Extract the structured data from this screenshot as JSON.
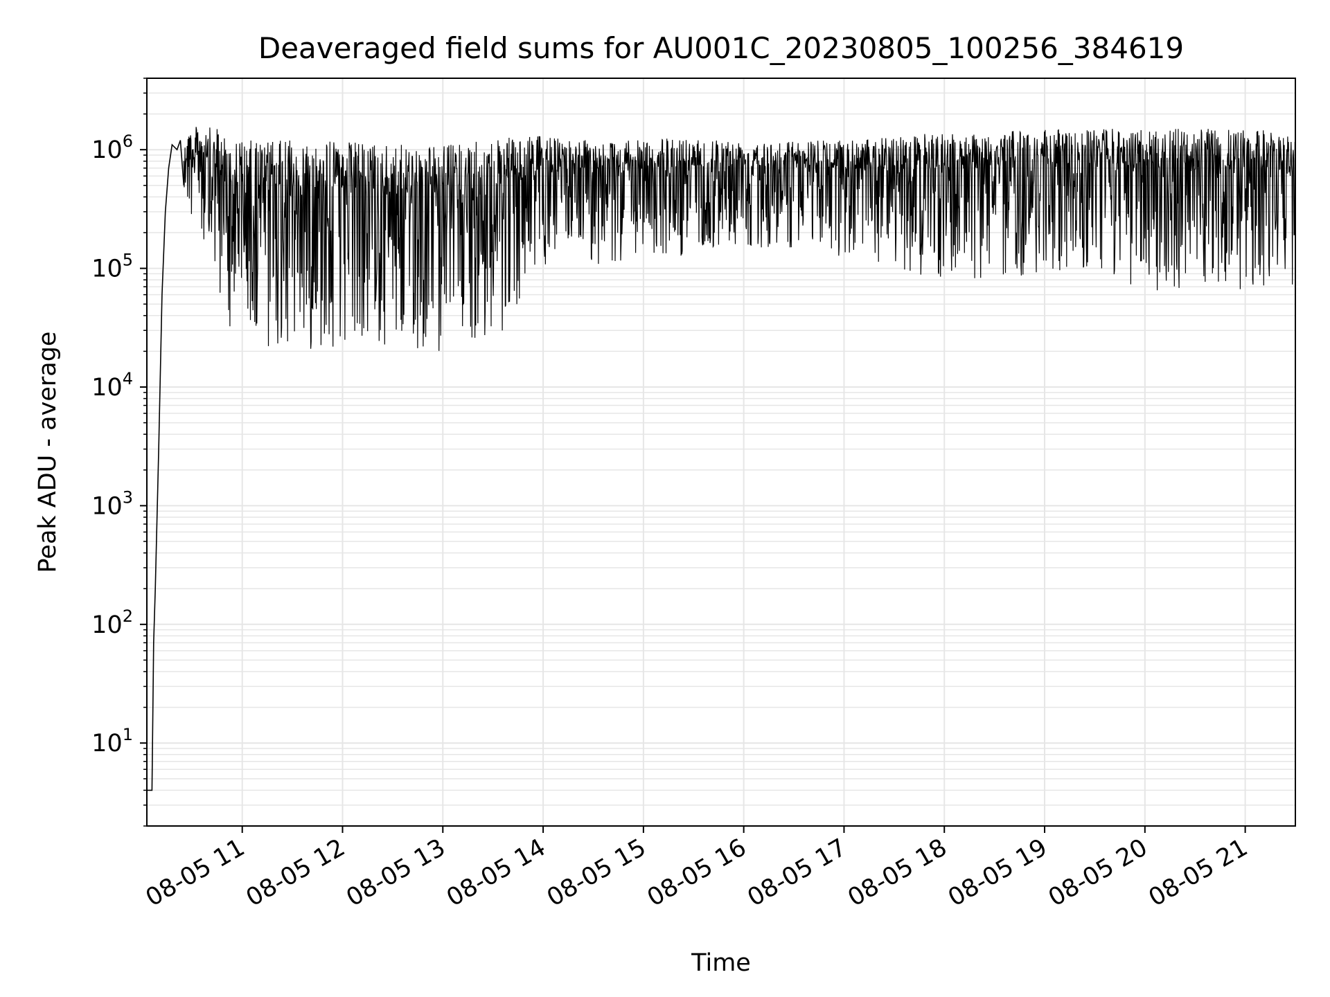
{
  "chart_data": {
    "type": "line",
    "title": "Deaveraged field sums for AU001C_20230805_100256_384619",
    "xlabel": "Time",
    "ylabel": "Peak ADU - average",
    "y_scale": "log",
    "ylim": [
      2,
      4000000
    ],
    "xlim": [
      "2023-08-05 10:02:56",
      "2023-08-05 21:30:00"
    ],
    "grid": true,
    "line_color": "#000000",
    "grid_color": "#e6e6e6",
    "x_ticks": [
      {
        "label": "08-05 11",
        "time": "2023-08-05 11:00"
      },
      {
        "label": "08-05 12",
        "time": "2023-08-05 12:00"
      },
      {
        "label": "08-05 13",
        "time": "2023-08-05 13:00"
      },
      {
        "label": "08-05 14",
        "time": "2023-08-05 14:00"
      },
      {
        "label": "08-05 15",
        "time": "2023-08-05 15:00"
      },
      {
        "label": "08-05 16",
        "time": "2023-08-05 16:00"
      },
      {
        "label": "08-05 17",
        "time": "2023-08-05 17:00"
      },
      {
        "label": "08-05 18",
        "time": "2023-08-05 18:00"
      },
      {
        "label": "08-05 19",
        "time": "2023-08-05 19:00"
      },
      {
        "label": "08-05 20",
        "time": "2023-08-05 20:00"
      },
      {
        "label": "08-05 21",
        "time": "2023-08-05 21:00"
      }
    ],
    "y_ticks": [
      {
        "mantissa": "10",
        "exp": "1",
        "value": 10
      },
      {
        "mantissa": "10",
        "exp": "2",
        "value": 100
      },
      {
        "mantissa": "10",
        "exp": "3",
        "value": 1000
      },
      {
        "mantissa": "10",
        "exp": "4",
        "value": 10000
      },
      {
        "mantissa": "10",
        "exp": "5",
        "value": 100000
      },
      {
        "mantissa": "10",
        "exp": "6",
        "value": 1000000
      }
    ],
    "series": [
      {
        "points": [
          [
            "2023-08-05 10:02:56",
            4
          ],
          [
            "2023-08-05 10:06",
            4
          ],
          [
            "2023-08-05 10:07",
            70
          ],
          [
            "2023-08-05 10:08",
            200
          ],
          [
            "2023-08-05 10:10",
            3000
          ],
          [
            "2023-08-05 10:12",
            60000
          ],
          [
            "2023-08-05 10:14",
            300000
          ],
          [
            "2023-08-05 10:16",
            700000
          ],
          [
            "2023-08-05 10:18",
            1100000
          ],
          [
            "2023-08-05 10:21",
            1000000
          ],
          [
            "2023-08-05 10:23",
            1200000
          ],
          [
            "2023-08-05 10:25",
            500000
          ]
        ]
      }
    ],
    "band_envelope": [
      {
        "time": "2023-08-05 10:25",
        "upper": 1500000,
        "lower": 300000
      },
      {
        "time": "2023-08-05 10:35",
        "upper": 1600000,
        "lower": 150000
      },
      {
        "time": "2023-08-05 10:45",
        "upper": 1500000,
        "lower": 50000
      },
      {
        "time": "2023-08-05 11:00",
        "upper": 1200000,
        "lower": 20000
      },
      {
        "time": "2023-08-05 11:30",
        "upper": 1200000,
        "lower": 20000
      },
      {
        "time": "2023-08-05 12:00",
        "upper": 1200000,
        "lower": 22000
      },
      {
        "time": "2023-08-05 12:30",
        "upper": 1100000,
        "lower": 20000
      },
      {
        "time": "2023-08-05 13:00",
        "upper": 1100000,
        "lower": 20000
      },
      {
        "time": "2023-08-05 13:30",
        "upper": 1200000,
        "lower": 22000
      },
      {
        "time": "2023-08-05 13:45",
        "upper": 1300000,
        "lower": 50000
      },
      {
        "time": "2023-08-05 14:00",
        "upper": 1300000,
        "lower": 100000
      },
      {
        "time": "2023-08-05 14:30",
        "upper": 1200000,
        "lower": 100000
      },
      {
        "time": "2023-08-05 15:00",
        "upper": 1200000,
        "lower": 120000
      },
      {
        "time": "2023-08-05 15:30",
        "upper": 1300000,
        "lower": 130000
      },
      {
        "time": "2023-08-05 16:00",
        "upper": 1200000,
        "lower": 150000
      },
      {
        "time": "2023-08-05 16:30",
        "upper": 1200000,
        "lower": 150000
      },
      {
        "time": "2023-08-05 17:00",
        "upper": 1200000,
        "lower": 120000
      },
      {
        "time": "2023-08-05 17:30",
        "upper": 1300000,
        "lower": 90000
      },
      {
        "time": "2023-08-05 18:00",
        "upper": 1400000,
        "lower": 80000
      },
      {
        "time": "2023-08-05 18:30",
        "upper": 1400000,
        "lower": 80000
      },
      {
        "time": "2023-08-05 19:00",
        "upper": 1500000,
        "lower": 90000
      },
      {
        "time": "2023-08-05 19:30",
        "upper": 1500000,
        "lower": 100000
      },
      {
        "time": "2023-08-05 19:45",
        "upper": 1500000,
        "lower": 70000
      },
      {
        "time": "2023-08-05 20:00",
        "upper": 1500000,
        "lower": 65000
      },
      {
        "time": "2023-08-05 20:30",
        "upper": 1500000,
        "lower": 65000
      },
      {
        "time": "2023-08-05 21:00",
        "upper": 1500000,
        "lower": 65000
      },
      {
        "time": "2023-08-05 21:30",
        "upper": 1400000,
        "lower": 70000
      }
    ]
  }
}
